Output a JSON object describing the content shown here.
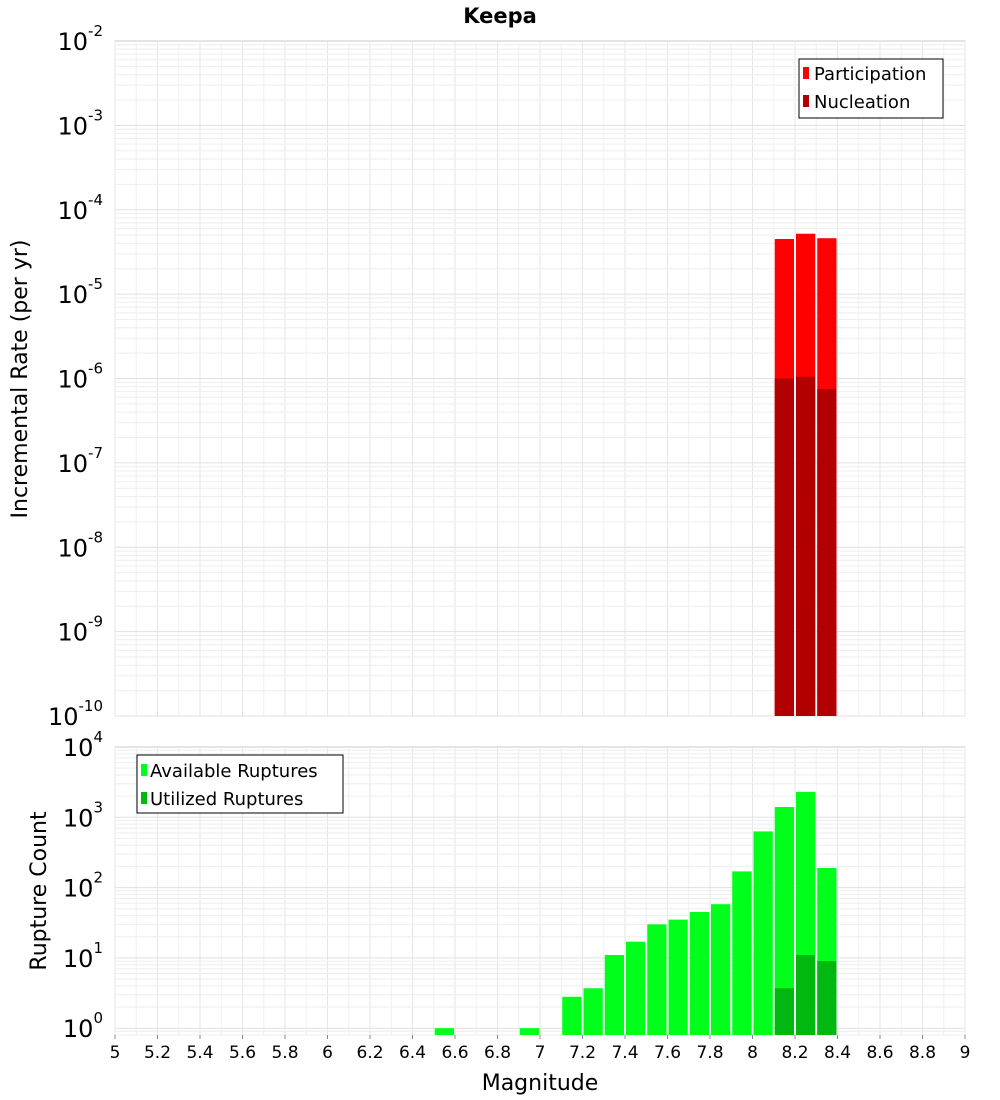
{
  "chart_data": [
    {
      "type": "bar",
      "title": "Keepa",
      "xlabel": "",
      "ylabel": "Incremental Rate (per yr)",
      "yscale": "log",
      "ylim": [
        1e-10,
        0.01
      ],
      "xlim": [
        5,
        9
      ],
      "bar_width": 0.1,
      "y_ticks": [
        {
          "base": "10",
          "exp": "-10",
          "value": 1e-10
        },
        {
          "base": "10",
          "exp": "-9",
          "value": 1e-09
        },
        {
          "base": "10",
          "exp": "-8",
          "value": 1e-08
        },
        {
          "base": "10",
          "exp": "-7",
          "value": 1e-07
        },
        {
          "base": "10",
          "exp": "-6",
          "value": 1e-06
        },
        {
          "base": "10",
          "exp": "-5",
          "value": 1e-05
        },
        {
          "base": "10",
          "exp": "-4",
          "value": 0.0001
        },
        {
          "base": "10",
          "exp": "-3",
          "value": 0.001
        },
        {
          "base": "10",
          "exp": "-2",
          "value": 0.01
        }
      ],
      "legend": {
        "position": "top-right"
      },
      "series": [
        {
          "name": "Participation",
          "color": "#ff0000",
          "x": [
            8.15,
            8.25,
            8.35
          ],
          "values": [
            4.5e-05,
            5.2e-05,
            4.6e-05
          ]
        },
        {
          "name": "Nucleation",
          "color": "#b20000",
          "x": [
            8.15,
            8.25,
            8.35
          ],
          "values": [
            1e-06,
            1.05e-06,
            7.5e-07
          ]
        }
      ]
    },
    {
      "type": "bar",
      "title": "",
      "xlabel": "Magnitude",
      "ylabel": "Rupture Count",
      "yscale": "log",
      "ylim": [
        0.8,
        10000
      ],
      "xlim": [
        5,
        9
      ],
      "bar_width": 0.1,
      "x_ticks": [
        "5",
        "5.2",
        "5.4",
        "5.6",
        "5.8",
        "6",
        "6.2",
        "6.4",
        "6.6",
        "6.8",
        "7",
        "7.2",
        "7.4",
        "7.6",
        "7.8",
        "8",
        "8.2",
        "8.4",
        "8.6",
        "8.8",
        "9"
      ],
      "y_ticks": [
        {
          "base": "10",
          "exp": "0",
          "value": 1
        },
        {
          "base": "10",
          "exp": "1",
          "value": 10
        },
        {
          "base": "10",
          "exp": "2",
          "value": 100
        },
        {
          "base": "10",
          "exp": "3",
          "value": 1000
        },
        {
          "base": "10",
          "exp": "4",
          "value": 10000
        }
      ],
      "legend": {
        "position": "top-left"
      },
      "series": [
        {
          "name": "Available Ruptures",
          "color": "#00ff1a",
          "x": [
            6.55,
            6.95,
            7.15,
            7.25,
            7.35,
            7.45,
            7.55,
            7.65,
            7.75,
            7.85,
            7.95,
            8.05,
            8.15,
            8.25,
            8.35
          ],
          "values": [
            1,
            1,
            2.8,
            3.7,
            11,
            17,
            30,
            35,
            45,
            58,
            170,
            630,
            1400,
            2300,
            190
          ]
        },
        {
          "name": "Utilized Ruptures",
          "color": "#00b80f",
          "x": [
            8.15,
            8.25,
            8.35
          ],
          "values": [
            3.7,
            11,
            9
          ]
        }
      ]
    }
  ]
}
